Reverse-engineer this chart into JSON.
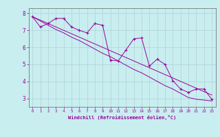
{
  "xlabel": "Windchill (Refroidissement éolien,°C)",
  "x_data": [
    0,
    1,
    2,
    3,
    4,
    5,
    6,
    7,
    8,
    9,
    10,
    11,
    12,
    13,
    14,
    15,
    16,
    17,
    18,
    19,
    20,
    21,
    22,
    23
  ],
  "y_scatter": [
    7.8,
    7.2,
    7.4,
    7.7,
    7.7,
    7.2,
    7.0,
    6.85,
    7.4,
    7.3,
    5.25,
    5.2,
    5.85,
    6.5,
    6.55,
    4.9,
    5.3,
    5.0,
    4.05,
    3.55,
    3.35,
    3.55,
    3.55,
    2.95
  ],
  "y_trend1": [
    7.8,
    7.55,
    7.3,
    7.05,
    6.85,
    6.6,
    6.4,
    6.15,
    5.9,
    5.65,
    5.45,
    5.2,
    4.95,
    4.7,
    4.5,
    4.25,
    4.0,
    3.75,
    3.55,
    3.3,
    3.05,
    2.95,
    2.9,
    2.85
  ],
  "y_trend2": [
    7.8,
    7.6,
    7.4,
    7.2,
    7.0,
    6.8,
    6.6,
    6.4,
    6.2,
    6.0,
    5.8,
    5.6,
    5.4,
    5.2,
    5.0,
    4.8,
    4.6,
    4.4,
    4.2,
    4.0,
    3.8,
    3.6,
    3.4,
    3.2
  ],
  "line_color": "#990099",
  "bg_color": "#c8eef0",
  "grid_color": "#b0d0d8",
  "ylim": [
    2.5,
    8.3
  ],
  "xlim": [
    -0.5,
    23.5
  ],
  "yticks": [
    3,
    4,
    5,
    6,
    7,
    8
  ],
  "xticks": [
    0,
    1,
    2,
    3,
    4,
    5,
    6,
    7,
    8,
    9,
    10,
    11,
    12,
    13,
    14,
    15,
    16,
    17,
    18,
    19,
    20,
    21,
    22,
    23
  ]
}
